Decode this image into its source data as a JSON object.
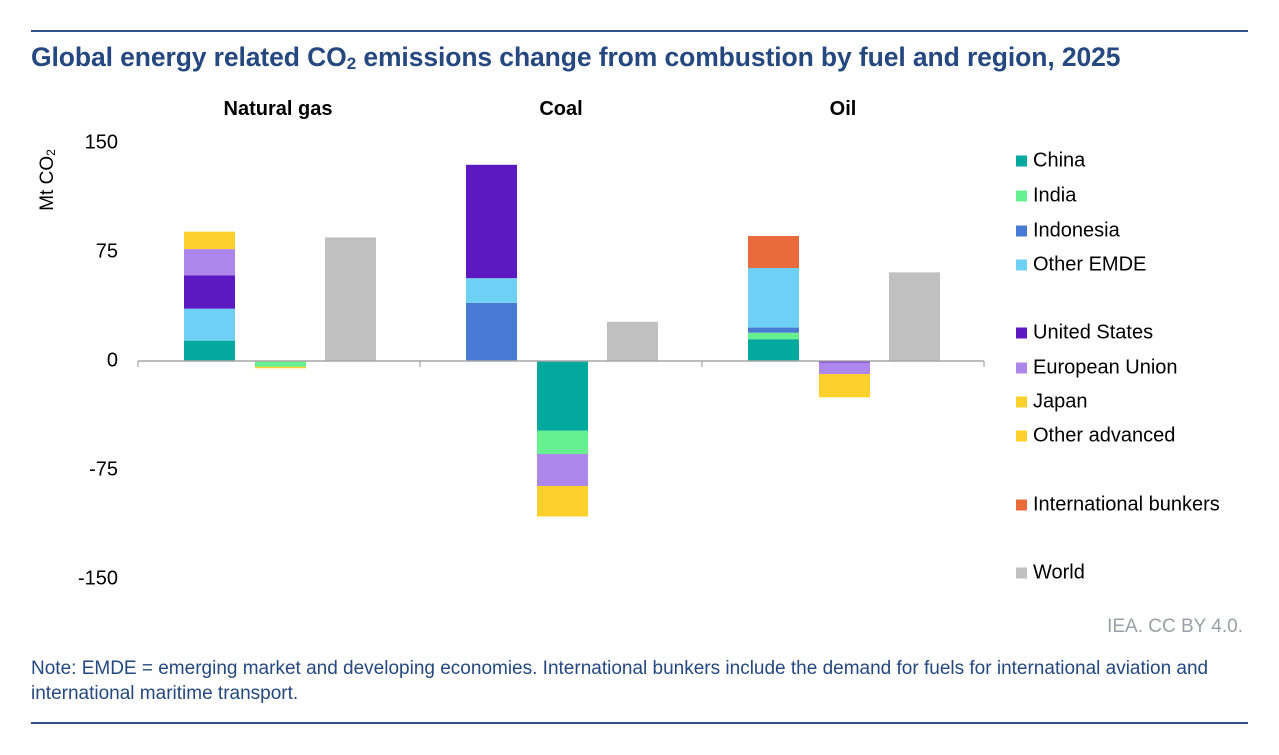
{
  "title_prefix": "Global energy related CO",
  "title_sub": "2",
  "title_suffix": " emissions change from combustion by fuel and region, 2025",
  "y_title_prefix": "Mt CO",
  "y_title_sub": "2",
  "source": "IEA. CC BY 4.0.",
  "note": "Note: EMDE = emerging market and developing economies. International bunkers include the demand for fuels for international aviation and international maritime transport.",
  "chart_data": {
    "type": "bar",
    "subtype": "stacked-grouped",
    "title": "Global energy related CO2 emissions change from combustion by fuel and region, 2025",
    "ylabel": "Mt CO2",
    "ylim": [
      -150,
      150
    ],
    "yticks": [
      "150",
      "75",
      "0",
      "-75",
      "-150"
    ],
    "ytick_values": [
      150,
      75,
      0,
      -75,
      -150
    ],
    "grid": false,
    "legend_position": "right",
    "groups": [
      "Natural gas",
      "Coal",
      "Oil"
    ],
    "bars_per_group": [
      "Increases",
      "Decreases",
      "World"
    ],
    "legend": [
      {
        "name": "China",
        "color": "#03a99d"
      },
      {
        "name": "India",
        "color": "#66f08f"
      },
      {
        "name": "Indonesia",
        "color": "#477ad3"
      },
      {
        "name": "Other EMDE",
        "color": "#6fd0f6"
      },
      {
        "name": "United States",
        "color": "#5c19c1"
      },
      {
        "name": "European Union",
        "color": "#ae87ec"
      },
      {
        "name": "Japan",
        "color": "#fdd02c"
      },
      {
        "name": "Other advanced",
        "color": "#fdd02c"
      },
      {
        "name": "International bunkers",
        "color": "#e96b3c"
      },
      {
        "name": "World",
        "color": "#bfc0bf"
      }
    ],
    "series": [
      {
        "group": "Natural gas",
        "bar": "Increases",
        "segments": [
          {
            "name": "China",
            "value": 14
          },
          {
            "name": "Other EMDE",
            "value": 22
          },
          {
            "name": "United States",
            "value": 23
          },
          {
            "name": "European Union",
            "value": 18
          },
          {
            "name": "Other advanced",
            "value": 12
          }
        ]
      },
      {
        "group": "Natural gas",
        "bar": "Decreases",
        "segments": [
          {
            "name": "India",
            "value": -4
          },
          {
            "name": "Other advanced",
            "value": -1
          }
        ]
      },
      {
        "group": "Natural gas",
        "bar": "World",
        "segments": [
          {
            "name": "World",
            "value": 85
          }
        ]
      },
      {
        "group": "Coal",
        "bar": "Increases",
        "segments": [
          {
            "name": "Indonesia",
            "value": 40
          },
          {
            "name": "Other EMDE",
            "value": 17
          },
          {
            "name": "United States",
            "value": 78
          }
        ]
      },
      {
        "group": "Coal",
        "bar": "Decreases",
        "segments": [
          {
            "name": "China",
            "value": -48
          },
          {
            "name": "India",
            "value": -16
          },
          {
            "name": "European Union",
            "value": -22
          },
          {
            "name": "Japan",
            "value": -21
          }
        ]
      },
      {
        "group": "Coal",
        "bar": "World",
        "segments": [
          {
            "name": "World",
            "value": 27
          }
        ]
      },
      {
        "group": "Oil",
        "bar": "Increases",
        "segments": [
          {
            "name": "China",
            "value": 15
          },
          {
            "name": "India",
            "value": 4.5
          },
          {
            "name": "Indonesia",
            "value": 3.5
          },
          {
            "name": "Other EMDE",
            "value": 41
          },
          {
            "name": "International bunkers",
            "value": 22
          }
        ]
      },
      {
        "group": "Oil",
        "bar": "Decreases",
        "segments": [
          {
            "name": "United States",
            "value": -1
          },
          {
            "name": "European Union",
            "value": -8
          },
          {
            "name": "Japan",
            "value": -16
          }
        ]
      },
      {
        "group": "Oil",
        "bar": "World",
        "segments": [
          {
            "name": "World",
            "value": 61
          }
        ]
      }
    ]
  }
}
